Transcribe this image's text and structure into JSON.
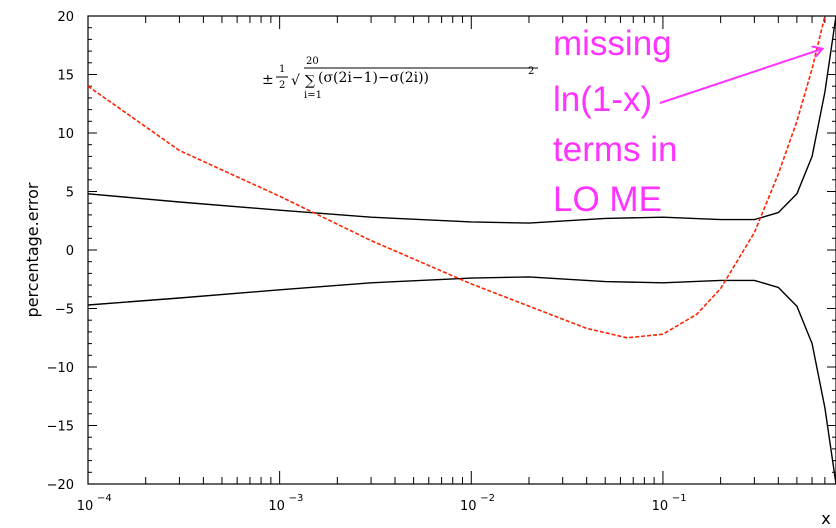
{
  "chart_data": {
    "type": "line",
    "xscale": "log",
    "xlim": [
      0.0001,
      0.8
    ],
    "ylim": [
      -20,
      20
    ],
    "xlabel": "x",
    "ylabel": "percentage.error",
    "x_ticks": [
      {
        "value": 0.0001,
        "base": "10",
        "exp": "−4"
      },
      {
        "value": 0.001,
        "base": "10",
        "exp": "−3"
      },
      {
        "value": 0.01,
        "base": "10",
        "exp": "−2"
      },
      {
        "value": 0.1,
        "base": "10",
        "exp": "−1"
      }
    ],
    "y_ticks": [
      {
        "value": 20,
        "label": "20"
      },
      {
        "value": 15,
        "label": "15"
      },
      {
        "value": 10,
        "label": "10"
      },
      {
        "value": 5,
        "label": "5"
      },
      {
        "value": 0,
        "label": "0"
      },
      {
        "value": -5,
        "label": "−5"
      },
      {
        "value": -10,
        "label": "−10"
      },
      {
        "value": -15,
        "label": "−15"
      },
      {
        "value": -20,
        "label": "−20"
      }
    ],
    "grid": false,
    "series": [
      {
        "style": "solid",
        "color": "#000000",
        "x": [
          0.0001,
          0.0003,
          0.001,
          0.003,
          0.01,
          0.02,
          0.05,
          0.1,
          0.2,
          0.3,
          0.4,
          0.5,
          0.6,
          0.7,
          0.8
        ],
        "y": [
          4.8,
          4.1,
          3.4,
          2.8,
          2.4,
          2.3,
          2.7,
          2.8,
          2.6,
          2.6,
          3.2,
          4.8,
          8.0,
          13.5,
          20.0
        ]
      },
      {
        "style": "solid",
        "color": "#000000",
        "x": [
          0.0001,
          0.0003,
          0.001,
          0.003,
          0.01,
          0.02,
          0.05,
          0.1,
          0.2,
          0.3,
          0.4,
          0.5,
          0.6,
          0.7,
          0.8
        ],
        "y": [
          -4.7,
          -4.1,
          -3.4,
          -2.8,
          -2.4,
          -2.3,
          -2.7,
          -2.8,
          -2.6,
          -2.6,
          -3.2,
          -4.8,
          -8.0,
          -13.5,
          -20.0
        ]
      },
      {
        "style": "dashed",
        "color": "#ff2200",
        "x": [
          0.0001,
          0.0003,
          0.001,
          0.003,
          0.01,
          0.02,
          0.04,
          0.065,
          0.1,
          0.15,
          0.2,
          0.3,
          0.4,
          0.5,
          0.6,
          0.7
        ],
        "y": [
          14.0,
          8.5,
          4.6,
          0.8,
          -2.9,
          -4.8,
          -6.7,
          -7.5,
          -7.2,
          -5.5,
          -3.3,
          1.5,
          6.5,
          11.0,
          15.5,
          20.0
        ]
      }
    ],
    "formula": {
      "pm": "±",
      "frac_num": "1",
      "frac_den": "2",
      "sqrt": "√",
      "sum_top": "20",
      "sum_sym": "∑",
      "sum_bottom": "i=1",
      "body": "(σ(2i−1)−σ(2i))",
      "power": "2"
    },
    "annotation": {
      "lines": [
        "missing",
        "ln(1-x)",
        "terms in",
        "LO ME"
      ],
      "color": "#ff33ff",
      "arrow_to": {
        "x": 0.68,
        "y": 17.2
      }
    }
  }
}
